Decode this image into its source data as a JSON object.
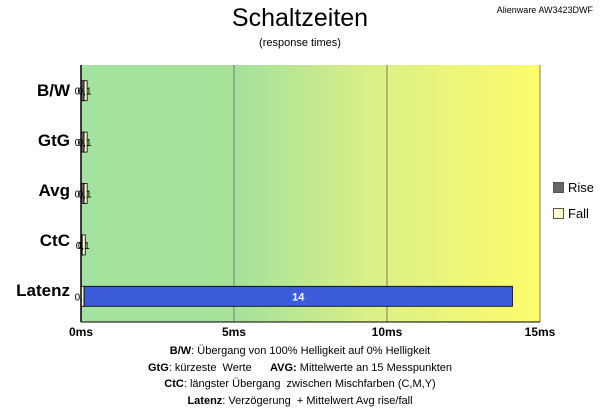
{
  "title": "Schaltzeiten",
  "subtitle": "(response times)",
  "model": "Alienware AW3423DWF",
  "legend": [
    {
      "label": "Rise",
      "color": "#666666"
    },
    {
      "label": "Fall",
      "color": "#ffffcc"
    }
  ],
  "notes": [
    {
      "parts": [
        {
          "b": "B/W",
          "t": ":  Übergang von 100% Helligkeit auf 0% Helligkeit"
        }
      ]
    },
    {
      "parts": [
        {
          "b": "GtG",
          "t": ": kürzeste  Werte      "
        },
        {
          "b": "AVG:",
          "t": " Mittelwerte an 15 Messpunkten"
        }
      ]
    },
    {
      "parts": [
        {
          "b": "CtC",
          "t": ": längster Übergang  zwischen Mischfarben (C,M,Y)"
        }
      ]
    },
    {
      "parts": [
        {
          "b": "Latenz",
          "t": ": Verzögerung  + Mittelwert Avg rise/fall"
        }
      ]
    }
  ],
  "chart_data": {
    "type": "bar",
    "orientation": "horizontal",
    "stacked": true,
    "title": "Schaltzeiten",
    "subtitle": "(response times)",
    "categories": [
      "B/W",
      "GtG",
      "Avg",
      "CtC",
      "Latenz"
    ],
    "series": [
      {
        "name": "Rise",
        "color": "#666666",
        "values": [
          0.1,
          0.1,
          0.1,
          0,
          null
        ],
        "labels": [
          "0,1",
          "0,1",
          "0,1",
          "0",
          ""
        ]
      },
      {
        "name": "Fall",
        "color": "#ffffcc",
        "values": [
          0.1,
          0.1,
          0.1,
          0.1,
          0.1
        ],
        "labels": [
          "0,1",
          "0,1",
          "0,1",
          "0,1",
          "0,1"
        ]
      },
      {
        "name": "",
        "color": "#3b5bd9",
        "values": [
          null,
          null,
          null,
          null,
          14
        ],
        "labels": [
          "",
          "",
          "",
          "",
          "14"
        ]
      }
    ],
    "xlim": [
      0,
      15
    ],
    "xticks": [
      0,
      5,
      10,
      15
    ],
    "xtick_labels": [
      "0ms",
      "5ms",
      "10ms",
      "15ms"
    ],
    "background_gradient": [
      "#a0e0a0",
      "#ffff66"
    ],
    "grid": true,
    "legend_position": "right"
  }
}
